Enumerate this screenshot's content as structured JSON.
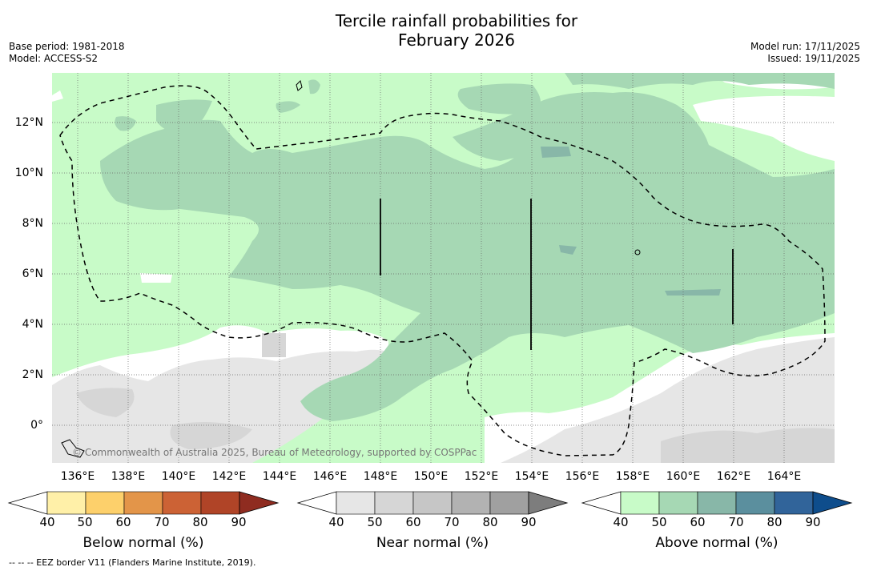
{
  "title": {
    "line1": "Tercile rainfall probabilities for",
    "line2": "February 2026"
  },
  "meta_left": {
    "base_period": "Base period: 1981-2018",
    "model": "Model: ACCESS-S2"
  },
  "meta_right": {
    "model_run": "Model run: 17/11/2025",
    "issued": "Issued: 19/11/2025"
  },
  "map": {
    "lat_labels": [
      "12°N",
      "10°N",
      "8°N",
      "6°N",
      "4°N",
      "2°N",
      "0°"
    ],
    "lon_labels": [
      "136°E",
      "138°E",
      "140°E",
      "142°E",
      "144°E",
      "146°E",
      "148°E",
      "150°E",
      "152°E",
      "154°E",
      "156°E",
      "158°E",
      "160°E",
      "162°E",
      "164°E"
    ],
    "copyright": "© Commonwealth of Australia 2025, Bureau of Meteorology, supported by COSPPac"
  },
  "colorbars": {
    "below": {
      "title": "Below normal (%)",
      "ticks": [
        "40",
        "50",
        "60",
        "70",
        "80",
        "90"
      ],
      "colors": [
        "#fff0a8",
        "#fdd06b",
        "#e39549",
        "#cc6235",
        "#b04427",
        "#8f2c20"
      ]
    },
    "near": {
      "title": "Near normal (%)",
      "ticks": [
        "40",
        "50",
        "60",
        "70",
        "80",
        "90"
      ],
      "colors": [
        "#e6e6e6",
        "#d6d6d6",
        "#c6c6c6",
        "#b2b2b2",
        "#a0a0a0",
        "#7d7d7d"
      ]
    },
    "above": {
      "title": "Above normal (%)",
      "ticks": [
        "40",
        "50",
        "60",
        "70",
        "80",
        "90"
      ],
      "colors": [
        "#c8fbc8",
        "#a6d8b4",
        "#88b7a8",
        "#5b8f9e",
        "#31649a",
        "#0e4d8c"
      ]
    }
  },
  "footnote": "--  --  -- EEZ border V11 (Flanders Marine Institute, 2019)."
}
